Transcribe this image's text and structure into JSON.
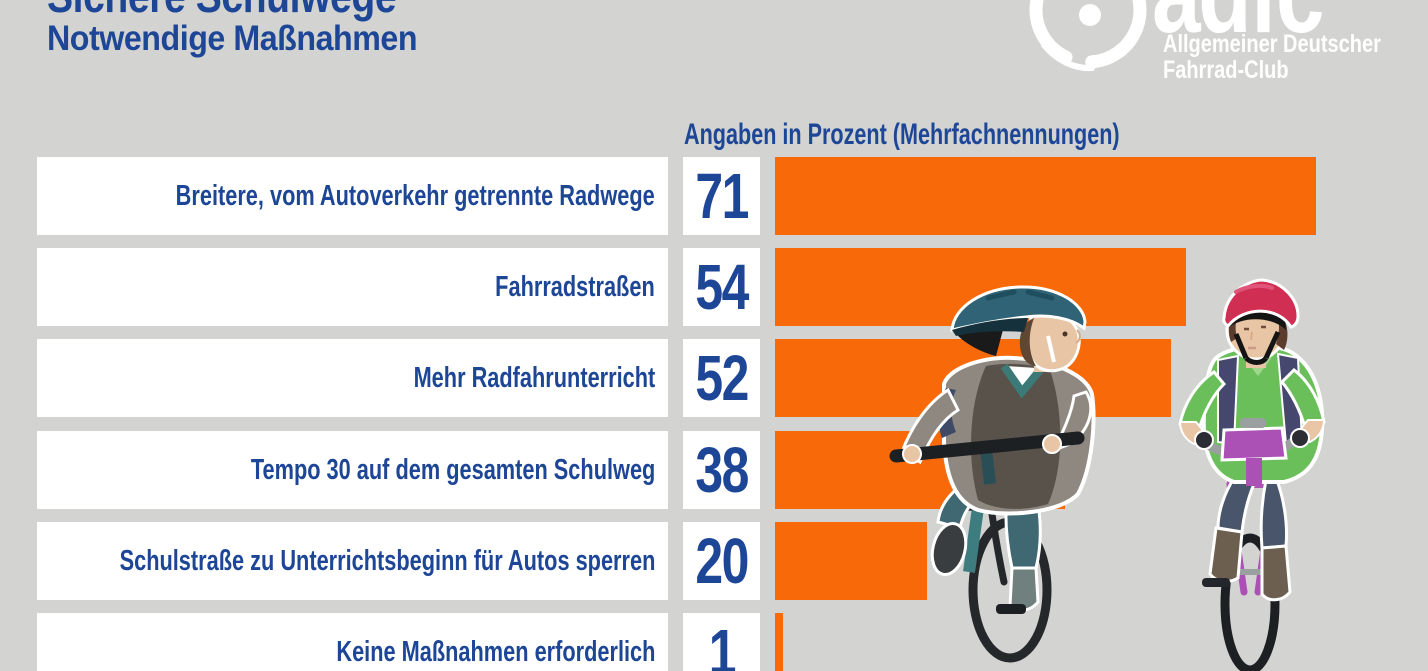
{
  "page": {
    "title_line1": "Sichere Schulwege",
    "title_line2": "Notwendige Maßnahmen"
  },
  "logo": {
    "brand": "adfc",
    "subtitle_line1": "Allgemeiner Deutscher",
    "subtitle_line2": "Fahrrad-Club",
    "wheel_icon": "bicycle-wheel"
  },
  "chart_data": {
    "type": "bar",
    "orientation": "horizontal",
    "title": "Sichere Schulwege – Notwendige Maßnahmen",
    "units_note": "Angaben in Prozent (Mehrfachnennungen)",
    "categories": [
      "Breitere, vom Autoverkehr getrennte Radwege",
      "Fahrradstraßen",
      "Mehr Radfahrunterricht",
      "Tempo 30 auf dem gesamten Schulweg",
      "Schulstraße zu Unterrichtsbeginn für Autos sperren",
      "Keine Maßnahmen erforderlich"
    ],
    "values": [
      71,
      54,
      52,
      38,
      20,
      1
    ],
    "value_unit": "percent",
    "xlim": [
      0,
      100
    ],
    "grid": false,
    "legend": null,
    "bar_color": "#f8690a",
    "text_color": "#1d4697"
  },
  "colors": {
    "background": "#d3d3d1",
    "bar_orange": "#f8690a",
    "text_blue": "#1d4697",
    "box_white": "#ffffff",
    "logo_white": "#ffffff"
  },
  "illustration": {
    "description": "Two children riding bicycles toward the viewer, watercolor style",
    "left_child": {
      "helmet": "#2f6375",
      "sweater": "#8e8880",
      "vest": "#58524b",
      "pants": "#3f6872",
      "bike": "#3d7d80"
    },
    "right_child": {
      "helmet": "#d02e52",
      "shirt": "#6abf5b",
      "backpack": "#45476e",
      "pants": "#48556a",
      "boots": "#6d5f50",
      "bike": "#ab51b5"
    }
  }
}
